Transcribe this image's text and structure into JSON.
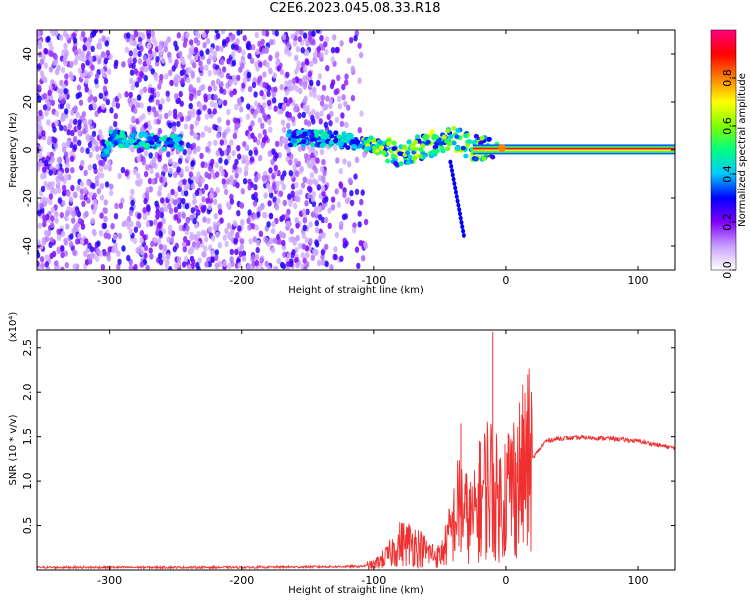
{
  "title": "C2E6.2023.045.08.33.R18",
  "chart_data": [
    {
      "type": "heatmap",
      "name": "spectrogram",
      "xlabel": "Height of straight line (km)",
      "ylabel": "Frequency (Hz)",
      "xlim": [
        -355,
        128
      ],
      "ylim": [
        -50,
        50
      ],
      "xticks": [
        -300,
        -200,
        -100,
        0,
        100
      ],
      "yticks": [
        -40,
        -20,
        0,
        20,
        40
      ],
      "colorbar": {
        "label": "Normalized spectral amplitude",
        "range": [
          0,
          1
        ],
        "ticks": [
          "0.0",
          "0.2",
          "0.4",
          "0.6",
          "0.8"
        ],
        "colors": [
          "#ffffff",
          "#c8a0ff",
          "#8000ff",
          "#0000ff",
          "#00c8ff",
          "#00ff80",
          "#80ff00",
          "#ffff00",
          "#ff8000",
          "#ff0000",
          "#ff0080"
        ]
      },
      "features": {
        "noise_region_x": [
          -355,
          -105
        ],
        "signal_track": [
          {
            "x": -300,
            "y": 5
          },
          {
            "x": -250,
            "y": 3
          },
          {
            "x": -150,
            "y": 5
          },
          {
            "x": -120,
            "y": 4
          },
          {
            "x": -100,
            "y": 2
          },
          {
            "x": -80,
            "y": -2
          },
          {
            "x": -60,
            "y": 2
          },
          {
            "x": -40,
            "y": 5
          },
          {
            "x": -25,
            "y": 1
          },
          {
            "x": 0,
            "y": 0.5
          },
          {
            "x": 128,
            "y": 0.5
          }
        ]
      }
    },
    {
      "type": "line",
      "name": "snr",
      "xlabel": "Height of straight line (km)",
      "ylabel": "SNR (10 * v/v)",
      "scale_label": "(x10⁴)",
      "xlim": [
        -355,
        128
      ],
      "ylim": [
        0,
        2.7
      ],
      "xticks": [
        -300,
        -200,
        -100,
        0,
        100
      ],
      "yticks": [
        0.5,
        1.0,
        1.5,
        2.0,
        2.5
      ],
      "color": "#f03030",
      "series": [
        {
          "x": [
            -355,
            -300,
            -200,
            -110,
            -100,
            -90,
            -80,
            -70,
            -60,
            -50,
            -45,
            -40,
            -35,
            -30,
            -25,
            -20,
            -15,
            -12,
            -10,
            -5,
            0,
            10,
            20,
            30,
            40,
            60,
            80,
            100,
            128
          ],
          "values": [
            0.03,
            0.03,
            0.03,
            0.04,
            0.06,
            0.15,
            0.3,
            0.3,
            0.2,
            0.15,
            0.3,
            0.5,
            0.75,
            0.6,
            0.55,
            0.75,
            0.95,
            1.0,
            0.9,
            0.75,
            0.9,
            1.05,
            1.25,
            1.45,
            1.48,
            1.49,
            1.48,
            1.45,
            1.37
          ]
        }
      ],
      "spikes": [
        {
          "x": -34,
          "value": 1.65
        },
        {
          "x": -20,
          "value": 1.45
        },
        {
          "x": -10,
          "value": 2.68
        }
      ]
    }
  ]
}
